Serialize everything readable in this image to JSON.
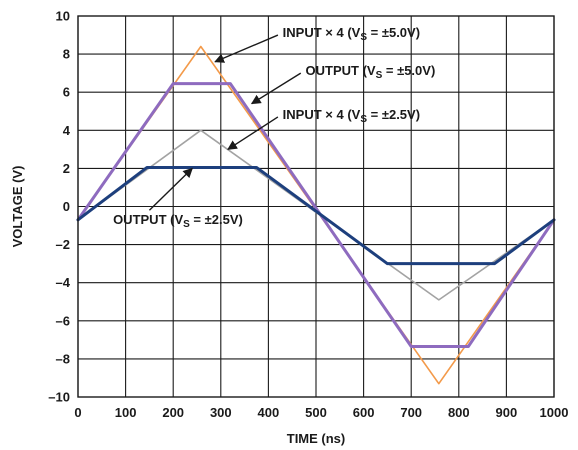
{
  "chart_data": {
    "type": "line",
    "xlabel": "TIME (ns)",
    "ylabel": "VOLTAGE (V)",
    "xlim": [
      0,
      1000
    ],
    "ylim": [
      -10,
      10
    ],
    "x_ticks": [
      0,
      100,
      200,
      300,
      400,
      500,
      600,
      700,
      800,
      900,
      1000
    ],
    "y_ticks": [
      -10,
      -8,
      -6,
      -4,
      -2,
      0,
      2,
      4,
      6,
      8,
      10
    ],
    "x_tick_labels": [
      "0",
      "100",
      "200",
      "300",
      "400",
      "500",
      "600",
      "700",
      "800",
      "900",
      "1000"
    ],
    "y_tick_labels": [
      "–10",
      "–8",
      "–6",
      "–4",
      "–2",
      "0",
      "2",
      "4",
      "6",
      "8",
      "10"
    ],
    "grid": true,
    "series": [
      {
        "key": "input_5v",
        "color": "#f39a4a",
        "points": [
          [
            0,
            -0.7
          ],
          [
            258,
            8.4
          ],
          [
            758,
            -9.3
          ],
          [
            1000,
            -0.7
          ]
        ]
      },
      {
        "key": "input_2_5v",
        "color": "#a3a3a3",
        "points": [
          [
            0,
            -0.7
          ],
          [
            258,
            4.0
          ],
          [
            758,
            -4.9
          ],
          [
            1000,
            -0.7
          ]
        ]
      },
      {
        "key": "output_5v",
        "color": "#8e6bbf",
        "points": [
          [
            0,
            -0.7
          ],
          [
            200,
            6.45
          ],
          [
            320,
            6.45
          ],
          [
            700,
            -7.35
          ],
          [
            820,
            -7.35
          ],
          [
            1000,
            -0.7
          ]
        ]
      },
      {
        "key": "output_2_5v",
        "color": "#1d3f7d",
        "points": [
          [
            0,
            -0.7
          ],
          [
            145,
            2.05
          ],
          [
            375,
            2.05
          ],
          [
            650,
            -3.0
          ],
          [
            875,
            -3.0
          ],
          [
            1000,
            -0.7
          ]
        ]
      }
    ],
    "annotations": [
      {
        "key": "input_5v",
        "parts": [
          {
            "t": "INPUT × 4 (V"
          },
          {
            "t": "S",
            "sub": true
          },
          {
            "t": " = ±5.0V)"
          }
        ],
        "at": [
          430,
          9.1
        ],
        "anchor": "start",
        "arrow_from": [
          420,
          9.0
        ],
        "arrow_to": [
          288,
          7.6
        ]
      },
      {
        "key": "output_5v",
        "parts": [
          {
            "t": "OUTPUT (V"
          },
          {
            "t": "S",
            "sub": true
          },
          {
            "t": " = ±5.0V)"
          }
        ],
        "at": [
          478,
          7.1
        ],
        "anchor": "start",
        "arrow_from": [
          468,
          7.0
        ],
        "arrow_to": [
          365,
          5.4
        ]
      },
      {
        "key": "input_2_5v",
        "parts": [
          {
            "t": "INPUT × 4 (V"
          },
          {
            "t": "S",
            "sub": true
          },
          {
            "t": " = ±2.5V)"
          }
        ],
        "at": [
          430,
          4.8
        ],
        "anchor": "start",
        "arrow_from": [
          420,
          4.7
        ],
        "arrow_to": [
          315,
          3.0
        ]
      },
      {
        "key": "output_2_5v",
        "parts": [
          {
            "t": "OUTPUT (V"
          },
          {
            "t": "S",
            "sub": true
          },
          {
            "t": " = ±2.5V)"
          }
        ],
        "at": [
          210,
          -0.7
        ],
        "anchor": "middle",
        "arrow_from": [
          150,
          -0.2
        ],
        "arrow_to": [
          240,
          2.0
        ]
      }
    ]
  },
  "colors": {
    "grid": "#1a1a1a",
    "frame": "#1a1a1a",
    "text": "#1a1a1a",
    "background": "#ffffff"
  }
}
